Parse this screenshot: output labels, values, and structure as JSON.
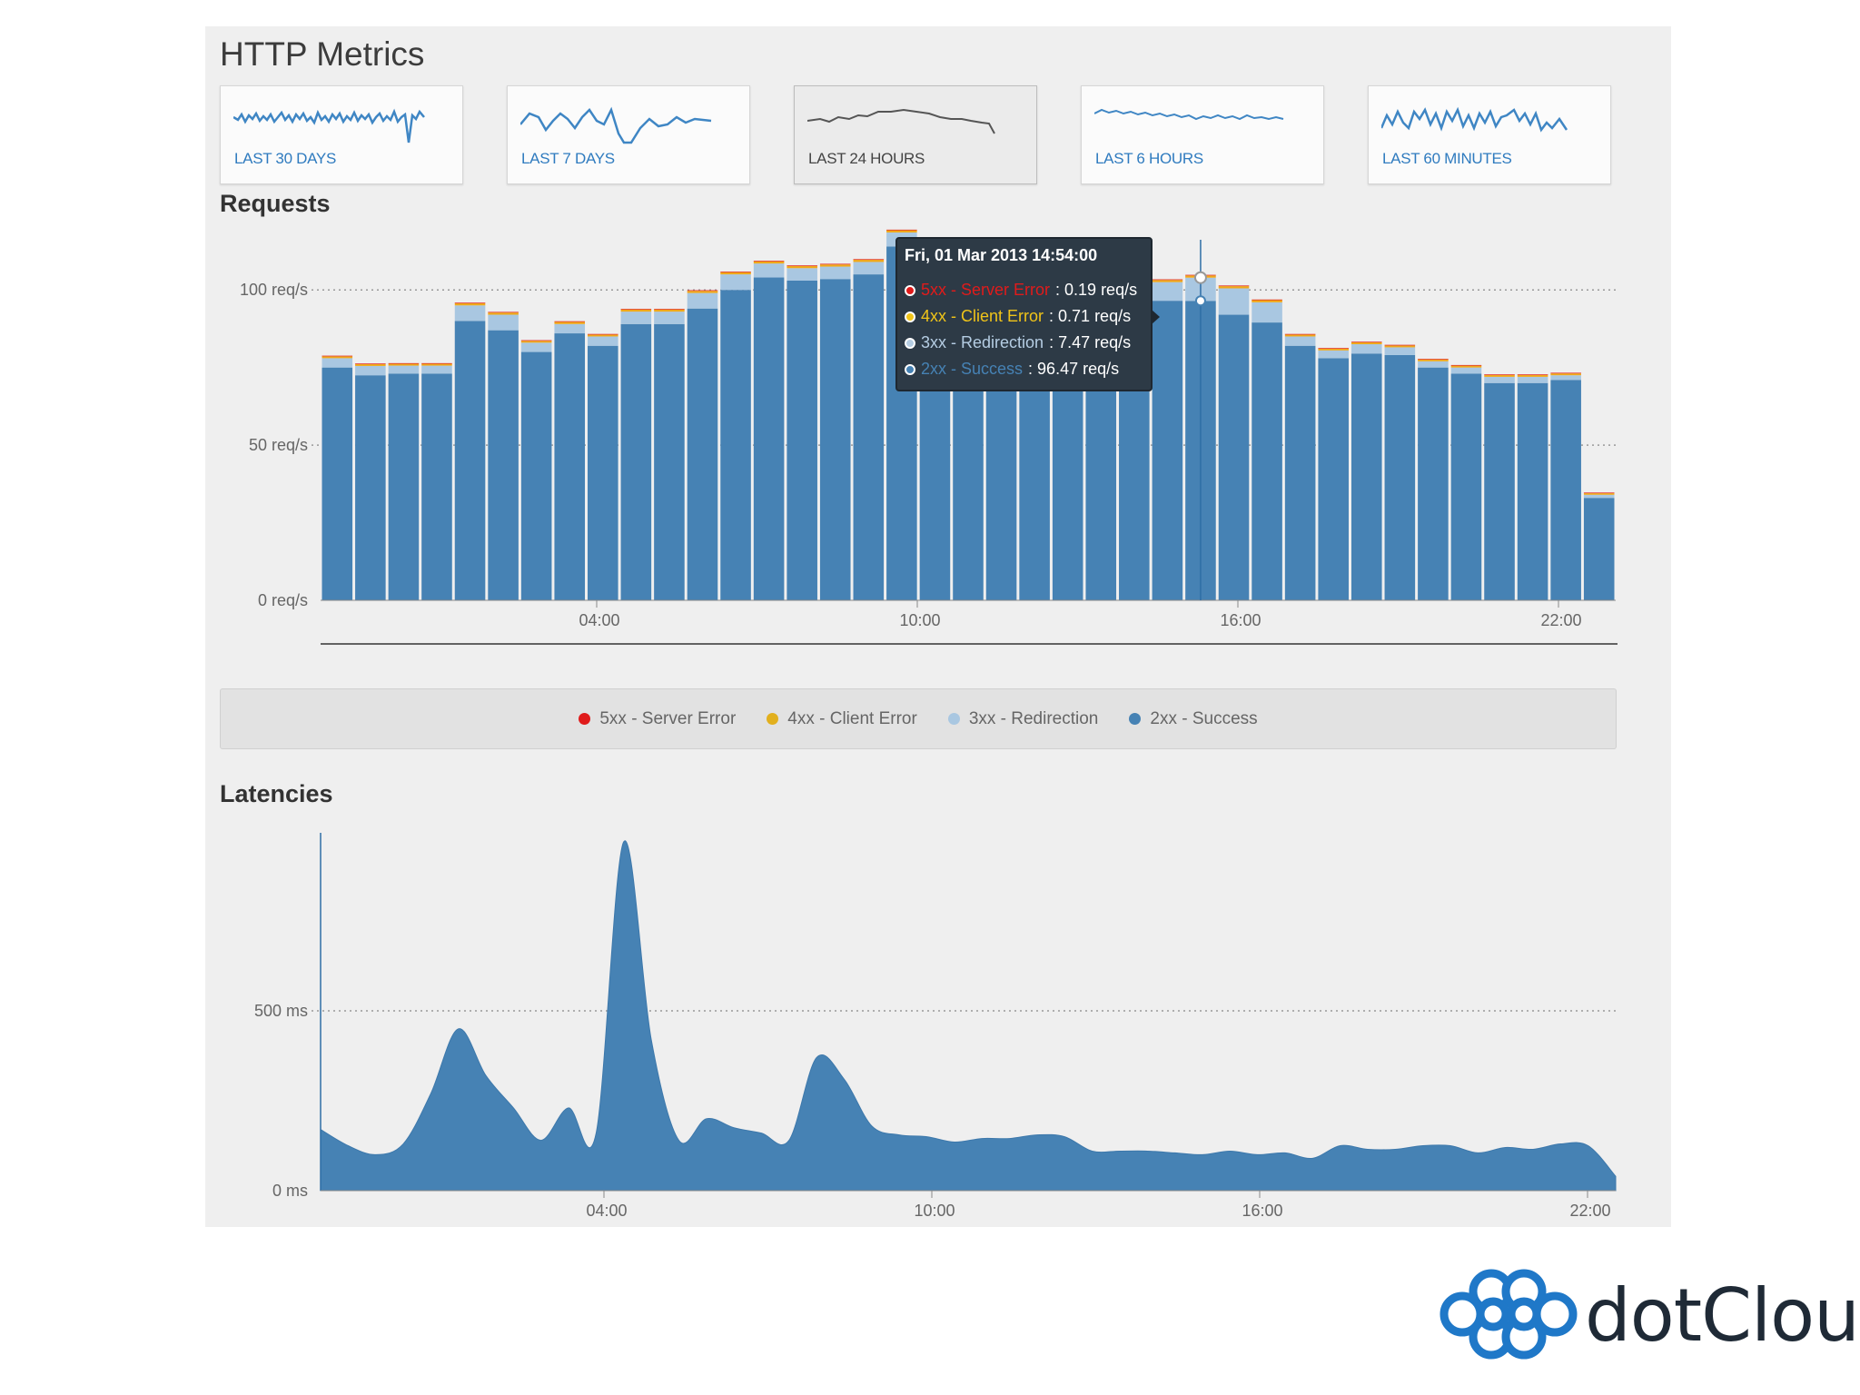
{
  "page": {
    "title": "HTTP Metrics",
    "requests_title": "Requests",
    "latencies_title": "Latencies"
  },
  "ranges": [
    {
      "label": "LAST 30 DAYS",
      "active": false
    },
    {
      "label": "LAST 7 DAYS",
      "active": false
    },
    {
      "label": "LAST 24 HOURS",
      "active": true
    },
    {
      "label": "LAST 6 HOURS",
      "active": false
    },
    {
      "label": "LAST 60 MINUTES",
      "active": false
    }
  ],
  "colors": {
    "success": "#4682b4",
    "redirection": "#a9c7e1",
    "client_error": "#f0a819",
    "server_error": "#e01b1b",
    "tooltip_bg": "#2d3a46",
    "panel_bg": "#efefef"
  },
  "legend": [
    {
      "label": "5xx - Server Error",
      "color": "#e01b1b"
    },
    {
      "label": "4xx - Client Error",
      "color": "#e2b01e"
    },
    {
      "label": "3xx - Redirection",
      "color": "#a9c7e1"
    },
    {
      "label": "2xx - Success",
      "color": "#4682b4"
    }
  ],
  "tooltip": {
    "title": "Fri, 01 Mar 2013 14:54:00",
    "rows": [
      {
        "name": "5xx - Server Error",
        "value": ": 0.19 req/s",
        "color": "#e01b1b"
      },
      {
        "name": "4xx - Client Error",
        "value": ": 0.71 req/s",
        "color": "#f0c419"
      },
      {
        "name": "3xx - Redirection",
        "value": ": 7.47 req/s",
        "color": "#b5cde3"
      },
      {
        "name": "2xx - Success",
        "value": ": 96.47 req/s",
        "color": "#4682b4"
      }
    ]
  },
  "chart_data": [
    {
      "type": "bar",
      "stacked": true,
      "title": "Requests",
      "x_ticks": [
        "04:00",
        "10:00",
        "16:00",
        "22:00"
      ],
      "y_ticks": [
        "0 req/s",
        "50 req/s",
        "100 req/s"
      ],
      "ylim": [
        0,
        122
      ],
      "grid": "dotted horizontal at 50 and 100",
      "series": [
        {
          "name": "2xx - Success",
          "values": [
            75,
            72.5,
            73,
            73,
            90,
            87,
            80,
            86,
            82,
            89,
            89,
            94,
            100,
            104,
            103,
            103.5,
            105,
            114,
            102,
            100,
            100,
            98,
            98,
            97,
            96,
            96.5,
            96.47,
            92,
            89.5,
            82,
            78,
            79.5,
            79,
            75,
            73,
            70,
            70,
            71,
            33
          ]
        },
        {
          "name": "3xx - Redirection",
          "values": [
            3,
            3,
            2.6,
            2.6,
            5,
            5,
            3,
            3,
            3,
            4,
            4,
            5,
            5,
            4.5,
            4,
            4,
            4,
            4.5,
            5,
            5,
            5,
            5,
            5,
            5,
            5,
            6,
            7.47,
            8.5,
            6.5,
            3,
            2.5,
            3,
            2.5,
            2,
            2,
            2,
            2,
            1.5,
            1
          ]
        },
        {
          "name": "4xx - Client Error",
          "values": [
            0.6,
            0.6,
            0.6,
            0.6,
            0.7,
            0.7,
            0.6,
            0.7,
            0.6,
            0.7,
            0.7,
            0.7,
            0.7,
            0.7,
            0.7,
            0.7,
            0.7,
            0.7,
            0.7,
            0.7,
            0.7,
            0.7,
            0.7,
            0.7,
            0.7,
            0.7,
            0.71,
            0.7,
            0.7,
            0.6,
            0.6,
            0.6,
            0.6,
            0.6,
            0.6,
            0.6,
            0.6,
            0.6,
            0.5
          ]
        },
        {
          "name": "5xx - Server Error",
          "values": [
            0.2,
            0.2,
            0.2,
            0.2,
            0.2,
            0.2,
            0.2,
            0.2,
            0.2,
            0.2,
            0.2,
            0.2,
            0.2,
            0.2,
            0.2,
            0.2,
            0.2,
            0.2,
            0.2,
            0.2,
            0.2,
            0.2,
            0.2,
            0.2,
            0.2,
            0.2,
            0.19,
            0.2,
            0.2,
            0.2,
            0.2,
            0.2,
            0.2,
            0.2,
            0.2,
            0.2,
            0.2,
            0.2,
            0.2
          ]
        }
      ]
    },
    {
      "type": "area",
      "title": "Latencies",
      "x_ticks": [
        "04:00",
        "10:00",
        "16:00",
        "22:00"
      ],
      "y_ticks": [
        "0 ms",
        "500 ms"
      ],
      "ylim": [
        0,
        990
      ],
      "grid": "dotted horizontal at 500",
      "x": [
        0,
        0.5,
        1,
        1.5,
        2,
        2.5,
        3,
        3.5,
        4,
        4.5,
        5,
        5.5,
        6,
        6.5,
        7,
        7.5,
        8,
        8.5,
        9,
        9.5,
        10,
        10.5,
        11,
        11.5,
        12,
        12.5,
        13,
        13.5,
        14,
        14.5,
        15,
        15.5,
        16,
        16.5,
        17,
        17.5,
        18,
        18.5,
        19,
        19.5,
        20,
        20.5,
        21,
        21.5,
        22,
        22.5,
        23,
        23.5
      ],
      "values": [
        170,
        125,
        100,
        130,
        270,
        450,
        320,
        230,
        140,
        230,
        160,
        970,
        420,
        140,
        200,
        175,
        160,
        140,
        370,
        310,
        180,
        155,
        150,
        135,
        145,
        145,
        155,
        150,
        110,
        110,
        110,
        105,
        100,
        110,
        100,
        105,
        90,
        125,
        115,
        115,
        125,
        125,
        105,
        120,
        115,
        130,
        125,
        40
      ]
    }
  ]
}
